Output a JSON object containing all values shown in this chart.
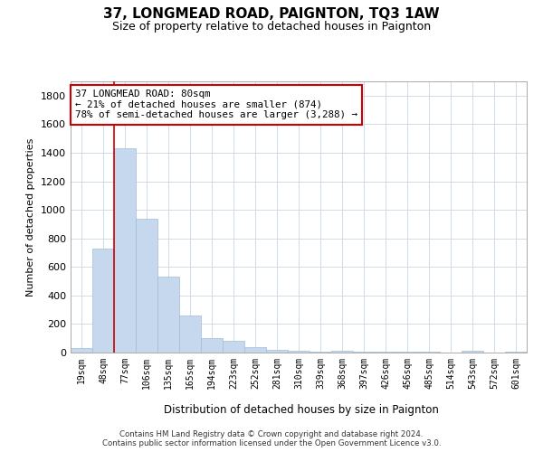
{
  "title": "37, LONGMEAD ROAD, PAIGNTON, TQ3 1AW",
  "subtitle": "Size of property relative to detached houses in Paignton",
  "xlabel": "Distribution of detached houses by size in Paignton",
  "ylabel": "Number of detached properties",
  "categories": [
    "19sqm",
    "48sqm",
    "77sqm",
    "106sqm",
    "135sqm",
    "165sqm",
    "194sqm",
    "223sqm",
    "252sqm",
    "281sqm",
    "310sqm",
    "339sqm",
    "368sqm",
    "397sqm",
    "426sqm",
    "456sqm",
    "485sqm",
    "514sqm",
    "543sqm",
    "572sqm",
    "601sqm"
  ],
  "values": [
    30,
    730,
    1430,
    940,
    530,
    260,
    100,
    80,
    35,
    20,
    15,
    5,
    15,
    5,
    5,
    5,
    5,
    0,
    15,
    0,
    5
  ],
  "bar_color": "#c5d8ed",
  "bar_edge_color": "#a0bcd8",
  "property_line_index": 2,
  "annotation_title": "37 LONGMEAD ROAD: 80sqm",
  "annotation_line1": "← 21% of detached houses are smaller (874)",
  "annotation_line2": "78% of semi-detached houses are larger (3,288) →",
  "annotation_box_color": "#ffffff",
  "annotation_box_edge": "#cc0000",
  "property_line_color": "#cc0000",
  "ylim": [
    0,
    1900
  ],
  "yticks": [
    0,
    200,
    400,
    600,
    800,
    1000,
    1200,
    1400,
    1600,
    1800
  ],
  "footer1": "Contains HM Land Registry data © Crown copyright and database right 2024.",
  "footer2": "Contains public sector information licensed under the Open Government Licence v3.0.",
  "background_color": "#ffffff",
  "grid_color": "#c8d8e8",
  "title_fontsize": 11,
  "subtitle_fontsize": 9
}
